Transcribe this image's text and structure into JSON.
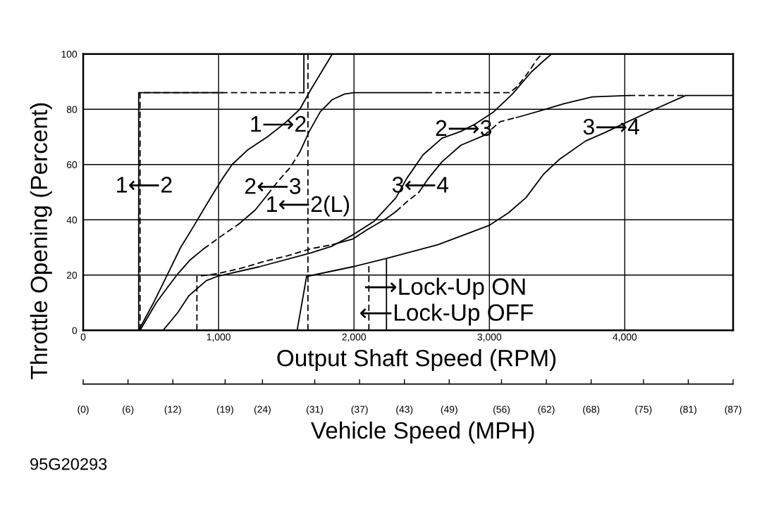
{
  "chart_data": {
    "type": "line",
    "xlabel": "Output Shaft Speed (RPM)",
    "ylabel": "Throttle Opening (Percent)",
    "x2label": "Vehicle Speed (MPH)",
    "xlim": [
      0,
      4800
    ],
    "xticks": [
      0,
      {
        "value": 1000,
        "label": "1,000"
      },
      {
        "value": 2000,
        "label": "2,000"
      },
      {
        "value": 3000,
        "label": "3,000"
      },
      {
        "value": 4000,
        "label": "4,000"
      }
    ],
    "ylim": [
      0,
      100
    ],
    "yticks": [
      0,
      20,
      40,
      60,
      80,
      100
    ],
    "x2lim": [
      0,
      87
    ],
    "x2ticks": [
      {
        "value": 0,
        "label": "(0)"
      },
      {
        "value": 6,
        "label": "(6)"
      },
      {
        "value": 12,
        "label": "(12)"
      },
      {
        "value": 19,
        "label": "(19)"
      },
      {
        "value": 24,
        "label": "(24)"
      },
      {
        "value": 31,
        "label": "(31)"
      },
      {
        "value": 37,
        "label": "(37)"
      },
      {
        "value": 43,
        "label": "(43)"
      },
      {
        "value": 49,
        "label": "(49)"
      },
      {
        "value": 56,
        "label": "(56)"
      },
      {
        "value": 62,
        "label": "(62)"
      },
      {
        "value": 68,
        "label": "(68)"
      },
      {
        "value": 75,
        "label": "(75)"
      },
      {
        "value": 81,
        "label": "(81)"
      },
      {
        "value": 87,
        "label": "(87)"
      }
    ],
    "grid": true,
    "series": [
      {
        "color": "#000000",
        "line_style": "solid",
        "x": [
          410,
          410,
          1030
        ],
        "values": [
          0,
          86,
          86
        ]
      },
      {
        "color": "#000000",
        "line_style": "dashed",
        "x": [
          420,
          420,
          1630
        ],
        "values": [
          0,
          86,
          86
        ]
      },
      {
        "color": "#000000",
        "line_style": "solid",
        "x": [
          1630,
          1630
        ],
        "values": [
          86,
          100
        ]
      },
      {
        "color": "#000000",
        "line_style": "dashed",
        "x": [
          1660,
          1660
        ],
        "values": [
          0,
          100
        ]
      },
      {
        "color": "#000000",
        "line_style": "solid",
        "x": [
          410,
          520,
          620,
          720,
          820,
          880,
          960,
          1030,
          1100,
          1220,
          1360,
          1490,
          1600,
          1680,
          1760,
          1840
        ],
        "values": [
          0,
          10,
          20,
          30,
          38,
          43,
          49.5,
          55,
          60,
          65.5,
          70,
          75,
          80,
          87,
          93.5,
          100
        ]
      },
      {
        "color": "#000000",
        "line_style": "solid",
        "x": [
          420,
          540,
          630,
          700,
          790,
          890
        ],
        "values": [
          0,
          10,
          16,
          20.5,
          25.5,
          29.5
        ]
      },
      {
        "color": "#000000",
        "line_style": "dashed",
        "x": [
          890,
          960,
          1060,
          1150
        ],
        "values": [
          29.5,
          32,
          35.5,
          38.5
        ]
      },
      {
        "color": "#000000",
        "line_style": "solid",
        "x": [
          1150,
          1270,
          1360
        ],
        "values": [
          38.5,
          43.5,
          49
        ]
      },
      {
        "color": "#000000",
        "line_style": "dashed",
        "x": [
          1360,
          1440,
          1530,
          1600
        ],
        "values": [
          49,
          54,
          59,
          64.5
        ]
      },
      {
        "color": "#000000",
        "line_style": "solid",
        "x": [
          1600,
          1670,
          1750,
          1840,
          1930,
          2000,
          2530
        ],
        "values": [
          64.5,
          72,
          79,
          83.5,
          85.5,
          86,
          86
        ]
      },
      {
        "color": "#000000",
        "line_style": "dashed",
        "x": [
          2530,
          3150,
          3200,
          3260,
          3310,
          3350,
          3390
        ],
        "values": [
          86,
          86,
          88,
          91.5,
          95,
          98,
          100
        ]
      },
      {
        "color": "#000000",
        "line_style": "solid",
        "x": [
          590,
          700,
          780,
          910,
          990,
          1300,
          1680,
          1840,
          1990,
          2150,
          2310,
          2390,
          2510,
          2650,
          2790,
          2890,
          3030,
          3170,
          3310,
          3400,
          3460
        ],
        "values": [
          0,
          6.5,
          12.5,
          18,
          19.5,
          23,
          28,
          30.5,
          34.5,
          39.5,
          48,
          55,
          63.5,
          69.5,
          72,
          74.5,
          79,
          85.5,
          93.5,
          97.5,
          100
        ]
      },
      {
        "color": "#000000",
        "line_style": "dashed",
        "x": [
          840,
          840,
          990,
          1170,
          1340,
          1510,
          1680,
          1840
        ],
        "values": [
          0,
          19.5,
          20.5,
          22.5,
          25,
          27,
          29.5,
          31
        ]
      },
      {
        "color": "#000000",
        "line_style": "solid",
        "x": [
          1840,
          1990,
          2100,
          2240,
          2310
        ],
        "values": [
          31,
          33,
          36.5,
          40.5,
          43
        ]
      },
      {
        "color": "#000000",
        "line_style": "dashed",
        "x": [
          2310,
          2390,
          2480
        ],
        "values": [
          43,
          46.5,
          50
        ]
      },
      {
        "color": "#000000",
        "line_style": "solid",
        "x": [
          2480,
          2550,
          2650,
          2790,
          2960
        ],
        "values": [
          50,
          55,
          61,
          67,
          70.5
        ]
      },
      {
        "color": "#000000",
        "line_style": "dashed",
        "x": [
          2960,
          3080,
          3200
        ],
        "values": [
          70.5,
          75.5,
          77
        ]
      },
      {
        "color": "#000000",
        "line_style": "solid",
        "x": [
          3200,
          3380,
          3550,
          3760,
          4030
        ],
        "values": [
          77,
          79.5,
          82,
          84.5,
          85
        ]
      },
      {
        "color": "#000000",
        "line_style": "dashed",
        "x": [
          4030,
          4450
        ],
        "values": [
          85,
          85
        ]
      },
      {
        "color": "#000000",
        "line_style": "solid",
        "x": [
          1580,
          1650,
          1990,
          2240,
          2620,
          3000,
          3140,
          3270,
          3400,
          3520,
          3710,
          3850,
          4000,
          4220,
          4450,
          4800
        ],
        "values": [
          0,
          19.5,
          23,
          26,
          31,
          38,
          42.5,
          48,
          56.5,
          62,
          68.5,
          71.5,
          75,
          80,
          85,
          85
        ]
      },
      {
        "color": "#000000",
        "line_style": "dashed",
        "x": [
          2110,
          2110
        ],
        "values": [
          0,
          24.5
        ]
      },
      {
        "color": "#000000",
        "line_style": "solid",
        "x": [
          2240,
          2240
        ],
        "values": [
          0,
          26
        ]
      }
    ],
    "annotations": [
      {
        "text": "1⟵2",
        "x": 450,
        "y": 52
      },
      {
        "text": "1⟶2",
        "x": 1440,
        "y": 74
      },
      {
        "text": "2⟵3",
        "x": 1400,
        "y": 51.5
      },
      {
        "text": "1⟵2(L)",
        "x": 1660,
        "y": 45
      },
      {
        "text": "2⟶3",
        "x": 2810,
        "y": 72.5
      },
      {
        "text": "3⟵4",
        "x": 2490,
        "y": 52
      },
      {
        "text": "3⟶4",
        "x": 3900,
        "y": 73
      },
      "⟶Lock-Up ON",
      "⟵Lock-Up OFF",
      "95G20293"
    ]
  }
}
